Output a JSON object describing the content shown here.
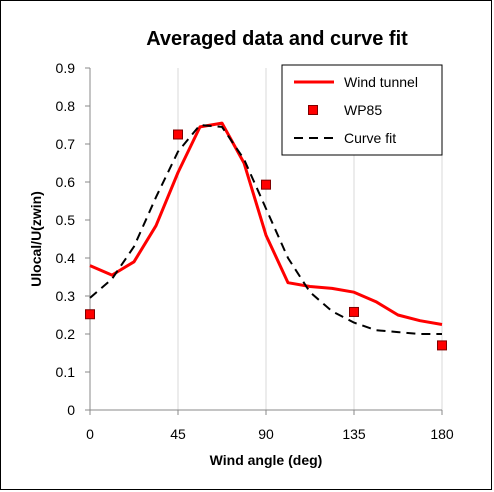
{
  "chart_data": {
    "type": "line",
    "title": "Averaged data and curve fit",
    "xlabel": "Wind angle (deg)",
    "ylabel": "Ulocal/U(zwin)",
    "xlim": [
      0,
      180
    ],
    "ylim": [
      0,
      0.9
    ],
    "xticks": [
      0,
      45,
      90,
      135,
      180
    ],
    "yticks": [
      0,
      0.1,
      0.2,
      0.3,
      0.4,
      0.5,
      0.6,
      0.7,
      0.8,
      0.9
    ],
    "grid": "vertical",
    "legend": "top-right",
    "series": [
      {
        "name": "Wind tunnel",
        "style": "solid-line",
        "color": "#ff0000",
        "x": [
          0,
          11.25,
          22.5,
          33.75,
          45,
          56.25,
          67.5,
          78.75,
          90,
          101.25,
          112.5,
          123.75,
          135,
          146.25,
          157.5,
          168.75,
          180
        ],
        "y": [
          0.38,
          0.355,
          0.39,
          0.485,
          0.625,
          0.745,
          0.755,
          0.65,
          0.46,
          0.335,
          0.325,
          0.32,
          0.31,
          0.285,
          0.25,
          0.235,
          0.225
        ]
      },
      {
        "name": "WP85",
        "style": "square-marker",
        "color": "#ff0000",
        "x": [
          0,
          45,
          90,
          135,
          180
        ],
        "y": [
          0.252,
          0.725,
          0.593,
          0.258,
          0.17
        ]
      },
      {
        "name": "Curve fit",
        "style": "dashed-line",
        "color": "#000000",
        "x": [
          0,
          11.25,
          22.5,
          33.75,
          45,
          56.25,
          67.5,
          78.75,
          90,
          101.25,
          112.5,
          123.75,
          135,
          146.25,
          157.5,
          168.75,
          180
        ],
        "y": [
          0.295,
          0.345,
          0.43,
          0.56,
          0.68,
          0.75,
          0.745,
          0.66,
          0.53,
          0.4,
          0.31,
          0.26,
          0.23,
          0.21,
          0.205,
          0.2,
          0.2
        ]
      }
    ]
  }
}
